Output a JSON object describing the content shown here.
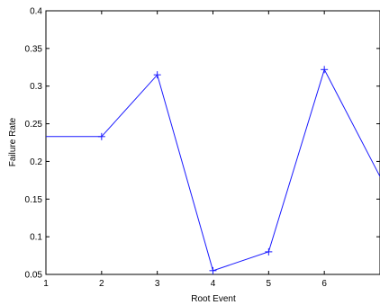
{
  "chart_data": {
    "type": "line",
    "title": "",
    "xlabel": "Root Event",
    "ylabel": "Failure Rate",
    "x": [
      1,
      2,
      3,
      4,
      5,
      6,
      7
    ],
    "series": [
      {
        "values": [
          0.233,
          0.233,
          0.315,
          0.055,
          0.08,
          0.322,
          0.18
        ]
      }
    ],
    "marked_points": [
      2,
      3,
      4,
      5,
      6
    ],
    "xlim": [
      1,
      7
    ],
    "ylim": [
      0.05,
      0.4
    ],
    "xticks": [
      "1",
      "2",
      "3",
      "4",
      "5",
      "6"
    ],
    "yticks": [
      "0.05",
      "0.1",
      "0.15",
      "0.2",
      "0.25",
      "0.3",
      "0.35",
      "0.4"
    ],
    "line_color": "#1a1aff",
    "grid": false,
    "marker": "+"
  }
}
